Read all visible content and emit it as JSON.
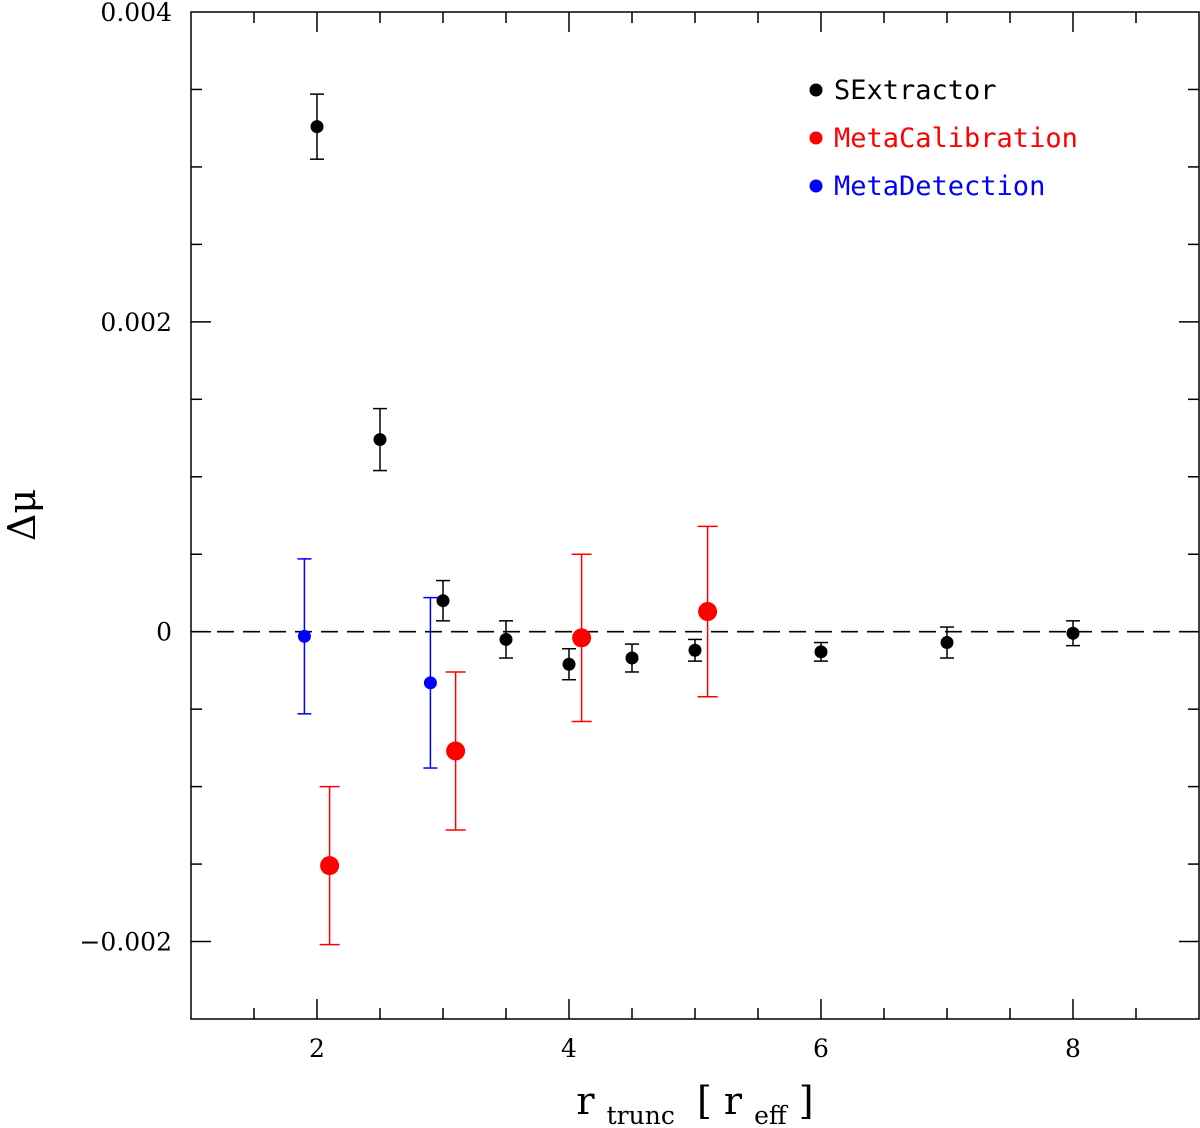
{
  "chart_data": {
    "type": "scatter",
    "title": "",
    "xlabel": {
      "main": "r",
      "main_sub": "trunc",
      "unit": "r",
      "unit_sub": "eff"
    },
    "ylabel": "Δμ",
    "xlim": [
      1,
      9
    ],
    "ylim": [
      -0.0025,
      0.004
    ],
    "x_ticks": [
      2,
      4,
      6,
      8
    ],
    "x_tick_labels": [
      "2",
      "4",
      "6",
      "8"
    ],
    "y_ticks": [
      -0.002,
      0,
      0.002,
      0.004
    ],
    "y_tick_labels": [
      "−0.002",
      "0",
      "0.002",
      "0.004"
    ],
    "reference_line": {
      "y": 0,
      "style": "dashed"
    },
    "legend_position": "top-right",
    "series": [
      {
        "name": "SExtractor",
        "color": "#000000",
        "points": [
          {
            "x": 2.0,
            "y": 0.00326,
            "err": 0.00021
          },
          {
            "x": 2.5,
            "y": 0.00124,
            "err": 0.0002
          },
          {
            "x": 3.0,
            "y": 0.0002,
            "err": 0.00013
          },
          {
            "x": 3.5,
            "y": -5e-05,
            "err": 0.00012
          },
          {
            "x": 4.0,
            "y": -0.00021,
            "err": 0.0001
          },
          {
            "x": 4.5,
            "y": -0.00017,
            "err": 9e-05
          },
          {
            "x": 5.0,
            "y": -0.00012,
            "err": 7e-05
          },
          {
            "x": 6.0,
            "y": -0.00013,
            "err": 6e-05
          },
          {
            "x": 7.0,
            "y": -7e-05,
            "err": 0.0001
          },
          {
            "x": 8.0,
            "y": -1e-05,
            "err": 8e-05
          }
        ]
      },
      {
        "name": "MetaCalibration",
        "color": "#ff0000",
        "points": [
          {
            "x": 2.1,
            "y": -0.00151,
            "err": 0.00051
          },
          {
            "x": 3.1,
            "y": -0.00077,
            "err": 0.00051
          },
          {
            "x": 4.1,
            "y": -4e-05,
            "err": 0.00054
          },
          {
            "x": 5.1,
            "y": 0.00013,
            "err": 0.00055
          }
        ]
      },
      {
        "name": "MetaDetection",
        "color": "#0000ff",
        "points": [
          {
            "x": 1.9,
            "y": -3e-05,
            "err": 0.0005
          },
          {
            "x": 2.9,
            "y": -0.00033,
            "err": 0.00055
          }
        ]
      }
    ]
  }
}
